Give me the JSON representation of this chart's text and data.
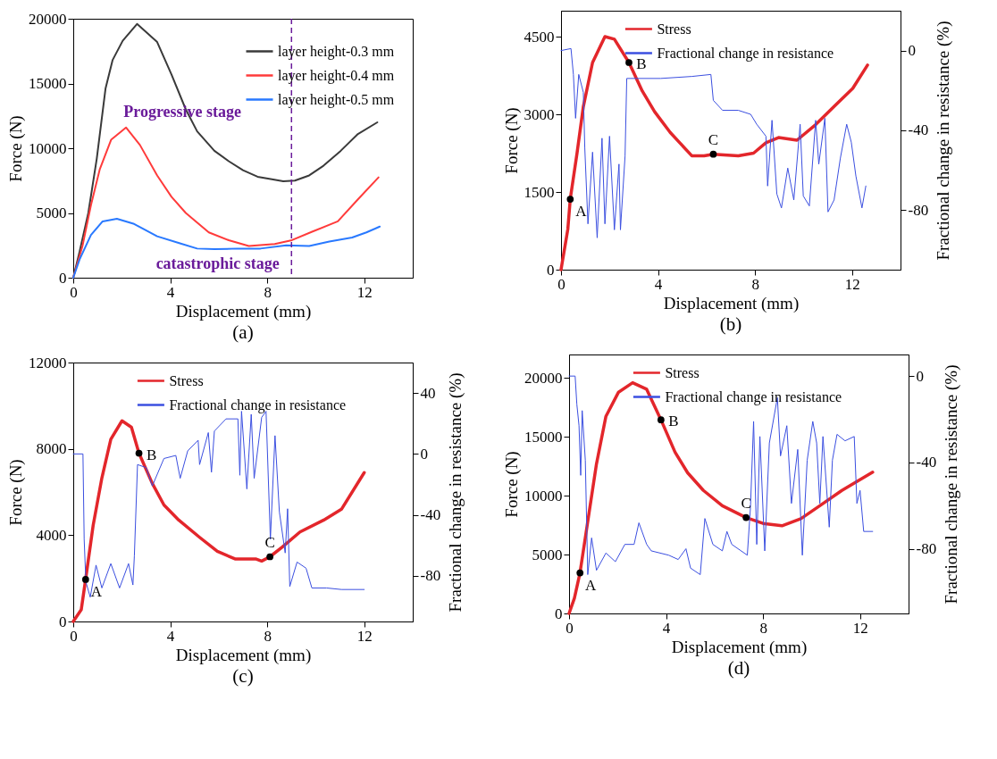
{
  "chart_data": [
    {
      "type": "line",
      "title": "(a)",
      "xlabel": "Displacement (mm)",
      "ylabel": "Force (N)",
      "xlim": [
        0,
        14
      ],
      "xticks": [
        0,
        4,
        8,
        12
      ],
      "ylim": [
        0,
        20000
      ],
      "yticks": [
        0,
        5000,
        10000,
        15000,
        20000
      ],
      "legend": "top right",
      "series": [
        {
          "name": "layer height-0.3 mm",
          "color": "#3a3a3a",
          "x": [
            0,
            0.26,
            0.62,
            0.97,
            1.33,
            1.62,
            2.04,
            2.63,
            3.46,
            4.05,
            4.64,
            5.11,
            5.82,
            6.41,
            7.0,
            7.6,
            8.19,
            8.66,
            9.14,
            9.73,
            10.32,
            11.03,
            11.74,
            12.54
          ],
          "values": [
            0,
            2000,
            5000,
            9200,
            14600,
            16800,
            18300,
            19600,
            18200,
            15700,
            13000,
            11300,
            9800,
            9000,
            8300,
            7800,
            7600,
            7450,
            7500,
            7900,
            8650,
            9800,
            11100,
            12000
          ]
        },
        {
          "name": "layer height-0.4 mm",
          "color": "#ff3b3b",
          "x": [
            0,
            0.38,
            0.73,
            1.09,
            1.56,
            2.18,
            2.75,
            3.46,
            4.05,
            4.64,
            5.59,
            6.41,
            7.24,
            8.31,
            9.02,
            9.85,
            10.91,
            11.74,
            12.59
          ],
          "values": [
            0,
            2450,
            5600,
            8350,
            10650,
            11600,
            10250,
            7900,
            6250,
            5000,
            3500,
            2900,
            2450,
            2600,
            2900,
            3550,
            4350,
            6050,
            7750
          ]
        },
        {
          "name": "layer height-0.5 mm",
          "color": "#2979ff",
          "x": [
            0,
            0.26,
            0.73,
            1.21,
            1.8,
            2.51,
            3.46,
            4.4,
            5.11,
            5.82,
            6.77,
            7.72,
            8.78,
            9.73,
            10.56,
            11.5,
            12.09,
            12.64
          ],
          "values": [
            0,
            1400,
            3300,
            4350,
            4550,
            4150,
            3200,
            2650,
            2250,
            2200,
            2250,
            2250,
            2500,
            2450,
            2800,
            3100,
            3500,
            3950
          ]
        }
      ],
      "ref_lines": [
        {
          "axis": "x",
          "value": 9,
          "color": "#6a1b9a",
          "line_style": "dashed"
        }
      ],
      "annotations": [
        "Progressive stage",
        "catastrophic stage"
      ]
    },
    {
      "type": "line",
      "title": "(b)",
      "xlabel": "Displacement (mm)",
      "ylabel": "Force (N)",
      "y2label": "Fractional change in resistance (%)",
      "xlim": [
        0,
        14
      ],
      "xticks": [
        0,
        4,
        8,
        12
      ],
      "ylim": [
        0,
        5000
      ],
      "yticks": [
        0,
        1500,
        3000,
        4500
      ],
      "y2lim": [
        -110,
        20
      ],
      "y2ticks": [
        0,
        -40,
        -80
      ],
      "legend": "top",
      "series": [
        {
          "name": "Stress",
          "color": "#e3262b",
          "x": [
            0,
            0.28,
            0.38,
            0.66,
            0.92,
            1.3,
            1.81,
            2.2,
            2.8,
            3.35,
            3.86,
            4.5,
            5.39,
            5.9,
            6.28,
            7.31,
            7.94,
            8.45,
            8.97,
            9.73,
            10.5,
            11.26,
            12.03,
            12.64
          ],
          "values": [
            0,
            780,
            1360,
            2250,
            3150,
            4000,
            4500,
            4450,
            4000,
            3450,
            3050,
            2650,
            2200,
            2200,
            2230,
            2200,
            2250,
            2450,
            2550,
            2500,
            2800,
            3150,
            3500,
            3950
          ]
        },
        {
          "name": "Fractional change in resistance",
          "color": "#3b4fe0",
          "axis": "y2",
          "x": [
            0,
            0.41,
            0.51,
            0.6,
            0.73,
            0.92,
            0.98,
            1.11,
            1.3,
            1.49,
            1.69,
            1.81,
            2.0,
            2.2,
            2.39,
            2.45,
            2.64,
            2.71,
            2.84,
            4.11,
            5.39,
            6.18,
            6.28,
            6.66,
            7.31,
            7.82,
            8.07,
            8.45,
            8.52,
            8.7,
            8.9,
            9.09,
            9.35,
            9.6,
            9.86,
            9.99,
            10.24,
            10.5,
            10.63,
            10.88,
            11.01,
            11.26,
            11.52,
            11.78,
            11.97,
            12.16,
            12.41,
            12.57
          ],
          "values": [
            0,
            1,
            -12,
            -34,
            -12,
            -21,
            -49,
            -87,
            -51,
            -94,
            -44,
            -87,
            -43,
            -90,
            -57,
            -90,
            -53,
            -14,
            -14,
            -14,
            -13,
            -12,
            -25,
            -30,
            -30,
            -32,
            -37,
            -43,
            -68,
            -35,
            -72,
            -79,
            -59,
            -75,
            -37,
            -73,
            -78,
            -35,
            -57,
            -34,
            -81,
            -75,
            -54,
            -37,
            -46,
            -63,
            -79,
            -68
          ]
        },
        {
          "type": "scatter",
          "color": "#000000",
          "x": [
            0.38,
            2.8,
            6.28
          ],
          "values": [
            1360,
            4000,
            2230
          ]
        }
      ],
      "annotations": [
        {
          "text": "A",
          "x": 0.38,
          "y": 1360
        },
        {
          "text": "B",
          "x": 2.8,
          "y": 4000
        },
        {
          "text": "C",
          "x": 6.28,
          "y": 2230
        }
      ]
    },
    {
      "type": "line",
      "title": "(c)",
      "xlabel": "Displacement (mm)",
      "ylabel": "Force (N)",
      "y2label": "Fractional change in resistance (%)",
      "xlim": [
        0,
        14
      ],
      "xticks": [
        0,
        4,
        8,
        12
      ],
      "ylim": [
        0,
        12000
      ],
      "yticks": [
        0,
        4000,
        8000,
        12000
      ],
      "y2lim": [
        -110,
        60
      ],
      "y2ticks": [
        40,
        0,
        -40,
        -80
      ],
      "legend": "top",
      "series": [
        {
          "name": "Stress",
          "color": "#e3262b",
          "x": [
            0,
            0.33,
            0.51,
            0.82,
            1.18,
            1.55,
            2.01,
            2.4,
            2.71,
            3.26,
            3.74,
            4.35,
            5.21,
            5.94,
            6.67,
            7.52,
            7.77,
            8.11,
            8.62,
            9.35,
            10.33,
            11.06,
            12.0
          ],
          "values": [
            0,
            550,
            1950,
            4450,
            6650,
            8450,
            9300,
            9000,
            7800,
            6400,
            5400,
            4700,
            3900,
            3250,
            2900,
            2900,
            2800,
            3000,
            3450,
            4150,
            4700,
            5200,
            6900
          ]
        },
        {
          "name": "Fractional change in resistance",
          "color": "#3b4fe0",
          "axis": "y2",
          "x": [
            0,
            0.4,
            0.45,
            0.52,
            0.7,
            0.94,
            1.18,
            1.55,
            1.91,
            2.28,
            2.46,
            2.52,
            2.65,
            3.01,
            3.26,
            3.74,
            4.23,
            4.41,
            4.72,
            5.15,
            5.21,
            5.57,
            5.7,
            5.82,
            6.3,
            6.79,
            6.87,
            6.94,
            7.16,
            7.34,
            7.46,
            7.77,
            7.95,
            8.13,
            8.32,
            8.5,
            8.74,
            8.84,
            8.93,
            9.23,
            9.6,
            9.84,
            10.45,
            11.06,
            12.0
          ],
          "values": [
            0,
            0,
            -56,
            -84,
            -94,
            -73,
            -88,
            -72,
            -88,
            -72,
            -86,
            -67,
            -7,
            -9,
            -21,
            -3,
            -1,
            -16,
            2,
            9,
            -7,
            14,
            -12,
            15,
            23,
            23,
            -14,
            28,
            -23,
            26,
            -16,
            24,
            28,
            -56,
            12,
            -38,
            -65,
            -36,
            -87,
            -71,
            -75,
            -88,
            -88,
            -89,
            -89
          ]
        },
        {
          "type": "scatter",
          "color": "#000000",
          "x": [
            0.51,
            2.71,
            8.11
          ],
          "values": [
            1950,
            7800,
            3000
          ]
        }
      ],
      "annotations": [
        {
          "text": "A",
          "x": 0.51,
          "y": 1950
        },
        {
          "text": "B",
          "x": 2.71,
          "y": 7800
        },
        {
          "text": "C",
          "x": 8.11,
          "y": 3000
        }
      ]
    },
    {
      "type": "line",
      "title": "(d)",
      "xlabel": "Displacement (mm)",
      "ylabel": "Force (N)",
      "y2label": "Fractional change in resistance (%)",
      "xlim": [
        0,
        14
      ],
      "xticks": [
        0,
        4,
        8,
        12
      ],
      "ylim": [
        0,
        22000
      ],
      "yticks": [
        0,
        5000,
        10000,
        15000,
        20000
      ],
      "y2lim": [
        -110,
        10
      ],
      "y2ticks": [
        0,
        -40,
        -80
      ],
      "legend": "top",
      "series": [
        {
          "name": "Stress",
          "color": "#e3262b",
          "x": [
            0,
            0.22,
            0.45,
            0.74,
            1.13,
            1.52,
            2.04,
            2.62,
            3.2,
            3.79,
            4.37,
            4.89,
            5.54,
            6.32,
            7.3,
            8.0,
            8.78,
            9.56,
            10.34,
            11.25,
            12.52
          ],
          "values": [
            0,
            1300,
            3450,
            7400,
            12700,
            16750,
            18800,
            19600,
            19050,
            16450,
            13700,
            11950,
            10450,
            9150,
            8150,
            7650,
            7450,
            8050,
            9150,
            10450,
            12000
          ]
        },
        {
          "name": "Fractional change in resistance",
          "color": "#3b4fe0",
          "axis": "y2",
          "x": [
            0,
            0.25,
            0.32,
            0.41,
            0.48,
            0.54,
            0.67,
            0.77,
            0.93,
            1.13,
            1.52,
            1.91,
            2.3,
            2.68,
            2.88,
            3.2,
            3.39,
            4.11,
            4.5,
            4.82,
            5.01,
            5.41,
            5.6,
            5.93,
            6.32,
            6.51,
            6.71,
            7.35,
            7.48,
            7.61,
            7.74,
            7.87,
            8.07,
            8.26,
            8.59,
            8.72,
            8.98,
            9.17,
            9.43,
            9.62,
            9.82,
            10.05,
            10.21,
            10.34,
            10.47,
            10.73,
            10.86,
            11.05,
            11.38,
            11.76,
            11.87,
            12.0,
            12.15,
            12.52
          ],
          "values": [
            0,
            0,
            -13,
            -23,
            -46,
            -16,
            -39,
            -92,
            -75,
            -90,
            -82,
            -86,
            -78,
            -78,
            -68,
            -78,
            -81,
            -83,
            -85,
            -80,
            -89,
            -92,
            -66,
            -78,
            -81,
            -72,
            -78,
            -83,
            -61,
            -21,
            -78,
            -28,
            -81,
            -31,
            -10,
            -37,
            -23,
            -59,
            -34,
            -83,
            -39,
            -21,
            -31,
            -59,
            -28,
            -70,
            -39,
            -27,
            -30,
            -28,
            -59,
            -53,
            -72,
            -72
          ]
        },
        {
          "type": "scatter",
          "color": "#000000",
          "x": [
            0.45,
            3.79,
            7.3
          ],
          "values": [
            3450,
            16450,
            8150
          ]
        }
      ],
      "annotations": [
        {
          "text": "A",
          "x": 0.45,
          "y": 3450
        },
        {
          "text": "B",
          "x": 3.79,
          "y": 16450
        },
        {
          "text": "C",
          "x": 7.3,
          "y": 8150
        }
      ]
    }
  ]
}
